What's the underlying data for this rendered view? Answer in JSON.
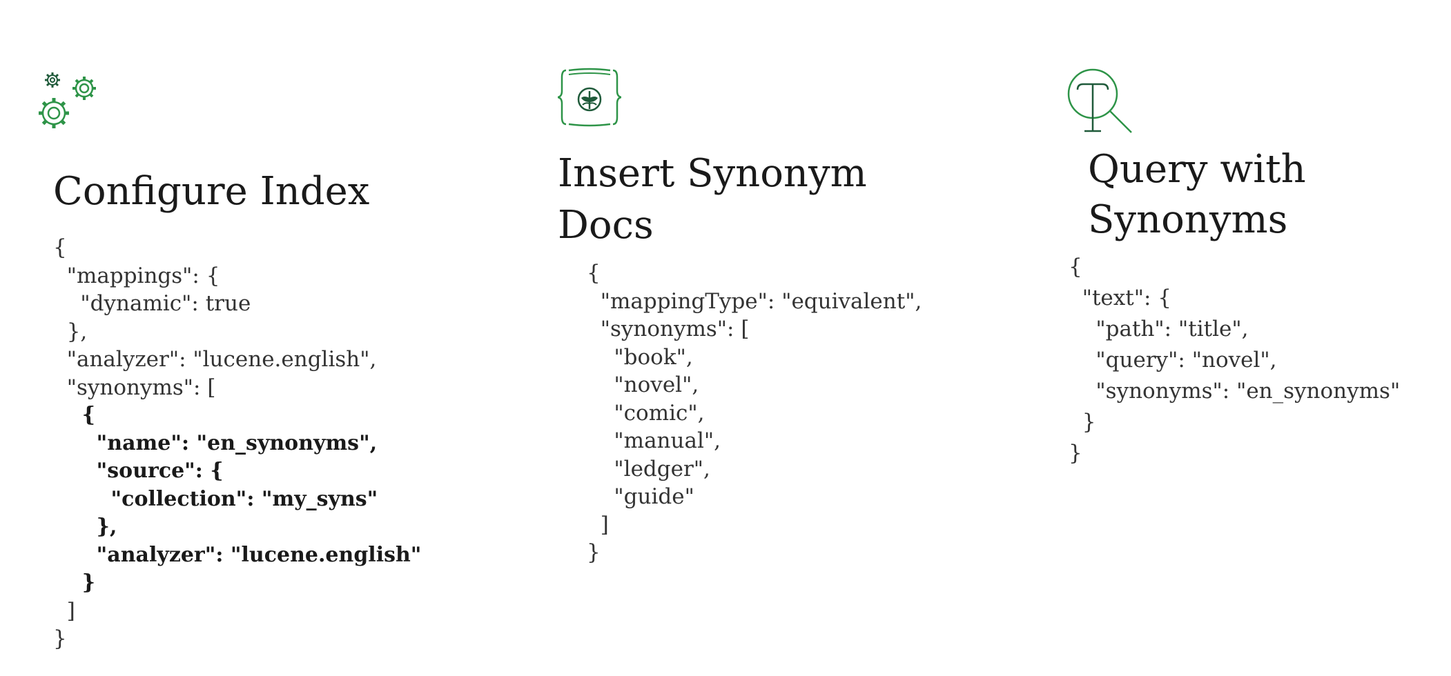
{
  "colors": {
    "accent": "#2e9448",
    "accent_dark": "#1f5a3a",
    "text": "#1a1a1a"
  },
  "configure": {
    "icon": "gears-icon",
    "title": "Configure Index",
    "code_lines": [
      {
        "text": "{",
        "bold": false
      },
      {
        "text": "  \"mappings\": {",
        "bold": false
      },
      {
        "text": "    \"dynamic\": true",
        "bold": false
      },
      {
        "text": "  },",
        "bold": false
      },
      {
        "text": "  \"analyzer\": \"lucene.english\",",
        "bold": false
      },
      {
        "text": "  \"synonyms\": [",
        "bold": false
      },
      {
        "text": "    {",
        "bold": true
      },
      {
        "text": "      \"name\": \"en_synonyms\",",
        "bold": true
      },
      {
        "text": "      \"source\": {",
        "bold": true
      },
      {
        "text": "        \"collection\": \"my_syns\"",
        "bold": true
      },
      {
        "text": "      },",
        "bold": true
      },
      {
        "text": "      \"analyzer\": \"lucene.english\"",
        "bold": true
      },
      {
        "text": "    }",
        "bold": true
      },
      {
        "text": "  ]",
        "bold": false
      },
      {
        "text": "}",
        "bold": false
      }
    ]
  },
  "insert": {
    "icon": "document-leaf-icon",
    "title_line1": "Insert Synonym",
    "title_line2": "Docs",
    "code_lines": [
      "{",
      "  \"mappingType\": \"equivalent\",",
      "  \"synonyms\": [",
      "    \"book\",",
      "    \"novel\",",
      "    \"comic\",",
      "    \"manual\",",
      "    \"ledger\",",
      "    \"guide\"",
      "  ]",
      "}"
    ]
  },
  "query": {
    "icon": "text-search-icon",
    "title_line1": "Query with",
    "title_line2": "Synonyms",
    "code_lines": [
      "{",
      "  \"text\": {",
      "    \"path\": \"title\",",
      "    \"query\": \"novel\",",
      "    \"synonyms\": \"en_synonyms\"",
      "  }",
      "}"
    ]
  }
}
